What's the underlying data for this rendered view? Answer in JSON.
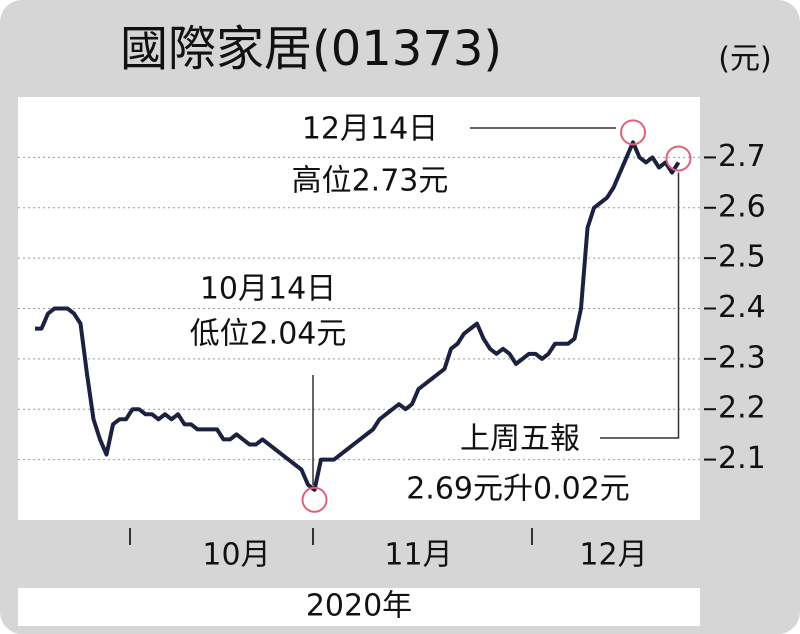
{
  "chart_data": {
    "type": "line",
    "title": "國際家居(01373)",
    "y_unit": "(元)",
    "x_label": "2020年",
    "categories": [
      null,
      null,
      null,
      null,
      null,
      null,
      null,
      null,
      null,
      null,
      null,
      null,
      null,
      null,
      null,
      null,
      null,
      null,
      null,
      null,
      null,
      null,
      null,
      null,
      null,
      null,
      null,
      null,
      null,
      null,
      null,
      "10月",
      null,
      null,
      null,
      null,
      null,
      null,
      null,
      null,
      null,
      null,
      null,
      null,
      null,
      null,
      null,
      null,
      null,
      null,
      null,
      null,
      null,
      null,
      null,
      null,
      null,
      null,
      null,
      "11月",
      null,
      null,
      null,
      null,
      null,
      null,
      null,
      null,
      null,
      null,
      null,
      null,
      null,
      null,
      null,
      null,
      null,
      null,
      null,
      null,
      null,
      null,
      null,
      null,
      null,
      null,
      null,
      null,
      null,
      "12月",
      null,
      null,
      null,
      null,
      null,
      null,
      null,
      null,
      null,
      null
    ],
    "series": [
      {
        "name": "國際家居",
        "color": "#1c2140",
        "values": [
          2.36,
          2.36,
          2.39,
          2.4,
          2.4,
          2.4,
          2.39,
          2.37,
          2.27,
          2.18,
          2.14,
          2.11,
          2.17,
          2.18,
          2.18,
          2.2,
          2.2,
          2.19,
          2.19,
          2.18,
          2.19,
          2.18,
          2.19,
          2.17,
          2.17,
          2.16,
          2.16,
          2.16,
          2.16,
          2.14,
          2.14,
          2.15,
          2.14,
          2.13,
          2.13,
          2.14,
          2.13,
          2.12,
          2.11,
          2.1,
          2.09,
          2.08,
          2.05,
          2.04,
          2.1,
          2.1,
          2.1,
          2.11,
          2.12,
          2.13,
          2.14,
          2.15,
          2.16,
          2.18,
          2.19,
          2.2,
          2.21,
          2.2,
          2.21,
          2.24,
          2.25,
          2.26,
          2.27,
          2.28,
          2.32,
          2.33,
          2.35,
          2.36,
          2.37,
          2.34,
          2.32,
          2.31,
          2.32,
          2.31,
          2.29,
          2.3,
          2.31,
          2.31,
          2.3,
          2.31,
          2.33,
          2.33,
          2.33,
          2.34,
          2.4,
          2.56,
          2.6,
          2.61,
          2.62,
          2.64,
          2.67,
          2.7,
          2.73,
          2.7,
          2.69,
          2.7,
          2.68,
          2.69,
          2.67,
          2.69
        ]
      }
    ],
    "ylim": [
      1.98,
      2.82
    ],
    "yticks": [
      2.1,
      2.2,
      2.3,
      2.4,
      2.5,
      2.6,
      2.7
    ],
    "grid": true,
    "annotations": [
      {
        "lines": [
          "12月14日",
          "高位2.73元"
        ]
      },
      {
        "lines": [
          "10月14日",
          "低位2.04元"
        ]
      },
      {
        "lines": [
          "上周五報",
          "2.69元升0.02元"
        ]
      }
    ]
  }
}
